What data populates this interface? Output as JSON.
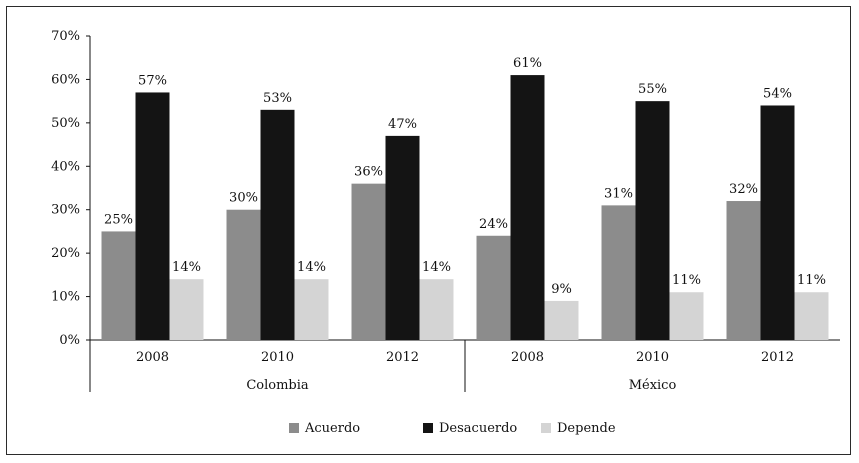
{
  "chart_data": {
    "type": "bar",
    "title": "",
    "ylabel": "",
    "xlabel": "",
    "ylim": [
      0,
      70
    ],
    "yticks": [
      "0%",
      "10%",
      "20%",
      "30%",
      "40%",
      "50%",
      "60%",
      "70%"
    ],
    "groups": [
      {
        "name": "Colombia",
        "categories": [
          "2008",
          "2010",
          "2012"
        ]
      },
      {
        "name": "México",
        "categories": [
          "2008",
          "2010",
          "2012"
        ]
      }
    ],
    "series": [
      {
        "name": "Acuerdo",
        "color": "#8c8c8c",
        "values": [
          25,
          30,
          36,
          24,
          31,
          32
        ],
        "labels": [
          "25%",
          "30%",
          "36%",
          "24%",
          "31%",
          "32%"
        ]
      },
      {
        "name": "Desacuerdo",
        "color": "#141414",
        "values": [
          57,
          53,
          47,
          61,
          55,
          54
        ],
        "labels": [
          "57%",
          "53%",
          "47%",
          "61%",
          "55%",
          "54%"
        ]
      },
      {
        "name": "Depende",
        "color": "#d4d4d4",
        "values": [
          14,
          14,
          14,
          9,
          11,
          11
        ],
        "labels": [
          "14%",
          "14%",
          "14%",
          "9%",
          "11%",
          "11%"
        ]
      }
    ],
    "legend_position": "bottom",
    "grid": false
  }
}
